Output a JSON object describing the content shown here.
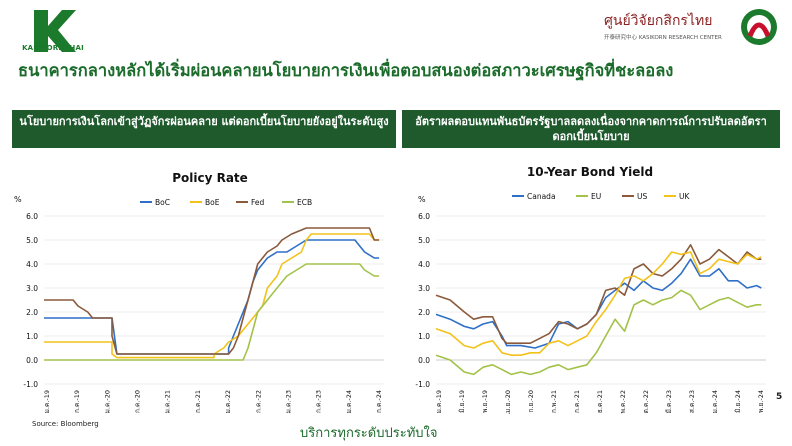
{
  "header": {
    "left_brand": "KASIKORNTHAI",
    "right_brand_title": "ศูนย์วิจัยกสิกรไทย",
    "right_brand_sub": "开泰研究中心 KASIKORN RESEARCH CENTER"
  },
  "title": "ธนาคารกลางหลักได้เริ่มผ่อนคลายนโยบายการเงินเพื่อตอบสนองต่อสภาวะเศรษฐกิจที่ชะลอลง",
  "banners": {
    "left": "นโยบายการเงินโลกเข้าสู่วัฏจักรผ่อนคลาย แต่ดอกเบี้ยนโยบายยังอยู่ในระดับสูง",
    "right": "อัตราผลตอบแทนพันธบัตรรัฐบาลลดลงเนื่องจากคาดการณ์การปรับลดอัตราดอกเบี้ยนโยบาย"
  },
  "footer": {
    "source": "Source: Bloomberg",
    "tagline": "บริการทุกระดับประทับใจ",
    "page": "5"
  },
  "colors": {
    "brand_green": "#1b6b2b",
    "banner_bg": "#1f5a2d",
    "BoC": "#2f6fc7",
    "BoE": "#f2c21b",
    "Fed": "#8a5a3b",
    "ECB": "#a3c24a",
    "Canada": "#2f6fc7",
    "EU": "#a3c24a",
    "US": "#8a5a3b",
    "UK": "#f2c21b"
  },
  "chart_data": [
    {
      "type": "line",
      "title": "Policy Rate",
      "ylabel": "%",
      "ylim": [
        -1.0,
        6.0
      ],
      "yticks": [
        "6.0",
        "5.0",
        "4.0",
        "3.0",
        "2.0",
        "1.0",
        "0.0",
        "-1.0"
      ],
      "x_ticks": [
        "ม.ค.-19",
        "ก.ค.-19",
        "ม.ค.-20",
        "ก.ค.-20",
        "ม.ค.-21",
        "ก.ค.-21",
        "ม.ค.-22",
        "ก.ค.-22",
        "ม.ค.-23",
        "ก.ค.-23",
        "ม.ค.-24",
        "ก.ค.-24"
      ],
      "x_range_months": [
        0,
        70
      ],
      "legend": "top",
      "series": [
        {
          "name": "BoC",
          "points": [
            [
              0,
              1.75
            ],
            [
              14,
              1.75
            ],
            [
              15,
              0.25
            ],
            [
              38,
              0.25
            ],
            [
              38,
              0.5
            ],
            [
              39,
              1.0
            ],
            [
              40,
              1.5
            ],
            [
              42,
              2.5
            ],
            [
              43,
              3.25
            ],
            [
              44,
              3.75
            ],
            [
              46,
              4.25
            ],
            [
              48,
              4.5
            ],
            [
              50,
              4.5
            ],
            [
              54,
              5.0
            ],
            [
              64,
              5.0
            ],
            [
              65,
              4.75
            ],
            [
              66,
              4.5
            ],
            [
              68,
              4.25
            ],
            [
              69,
              4.25
            ]
          ]
        },
        {
          "name": "BoE",
          "points": [
            [
              0,
              0.75
            ],
            [
              14,
              0.75
            ],
            [
              14,
              0.25
            ],
            [
              15,
              0.1
            ],
            [
              35,
              0.1
            ],
            [
              35,
              0.25
            ],
            [
              37,
              0.5
            ],
            [
              38,
              0.75
            ],
            [
              40,
              1.0
            ],
            [
              41,
              1.25
            ],
            [
              43,
              1.75
            ],
            [
              45,
              2.25
            ],
            [
              46,
              3.0
            ],
            [
              48,
              3.5
            ],
            [
              49,
              4.0
            ],
            [
              51,
              4.25
            ],
            [
              53,
              4.5
            ],
            [
              54,
              5.0
            ],
            [
              55,
              5.25
            ],
            [
              67,
              5.25
            ],
            [
              68,
              5.0
            ],
            [
              69,
              5.0
            ]
          ]
        },
        {
          "name": "Fed",
          "points": [
            [
              0,
              2.5
            ],
            [
              6,
              2.5
            ],
            [
              7,
              2.25
            ],
            [
              9,
              2.0
            ],
            [
              10,
              1.75
            ],
            [
              14,
              1.75
            ],
            [
              14,
              1.0
            ],
            [
              15,
              0.25
            ],
            [
              38,
              0.25
            ],
            [
              39,
              0.5
            ],
            [
              40,
              1.0
            ],
            [
              41,
              1.75
            ],
            [
              42,
              2.5
            ],
            [
              43,
              3.25
            ],
            [
              44,
              4.0
            ],
            [
              46,
              4.5
            ],
            [
              48,
              4.75
            ],
            [
              49,
              5.0
            ],
            [
              51,
              5.25
            ],
            [
              54,
              5.5
            ],
            [
              67,
              5.5
            ],
            [
              68,
              5.0
            ],
            [
              69,
              5.0
            ]
          ]
        },
        {
          "name": "ECB",
          "points": [
            [
              0,
              0.0
            ],
            [
              41,
              0.0
            ],
            [
              42,
              0.5
            ],
            [
              43,
              1.25
            ],
            [
              44,
              2.0
            ],
            [
              46,
              2.5
            ],
            [
              48,
              3.0
            ],
            [
              50,
              3.5
            ],
            [
              52,
              3.75
            ],
            [
              54,
              4.0
            ],
            [
              65,
              4.0
            ],
            [
              66,
              3.75
            ],
            [
              68,
              3.5
            ],
            [
              69,
              3.5
            ]
          ]
        }
      ]
    },
    {
      "type": "line",
      "title": "10-Year Bond Yield",
      "ylabel": "%",
      "ylim": [
        -1.0,
        6.0
      ],
      "yticks": [
        "6.0",
        "5.0",
        "4.0",
        "3.0",
        "2.0",
        "1.0",
        "0.0",
        "-1.0"
      ],
      "x_ticks": [
        "ม.ค.-19",
        "มิ.ย.-19",
        "พ.ย.-19",
        "เม.ย.-20",
        "ก.ย.-20",
        "ก.พ.-21",
        "ก.ค.-21",
        "ธ.ค.-21",
        "พ.ค.-22",
        "ต.ค.-22",
        "มี.ค.-23",
        "ส.ค.-23",
        "ม.ค.-24",
        "มิ.ย.-24",
        "พ.ย.-24"
      ],
      "x_range_months": [
        0,
        70
      ],
      "legend": "top",
      "series": [
        {
          "name": "Canada",
          "points": [
            [
              0,
              1.9
            ],
            [
              3,
              1.7
            ],
            [
              6,
              1.4
            ],
            [
              8,
              1.3
            ],
            [
              10,
              1.5
            ],
            [
              12,
              1.6
            ],
            [
              14,
              1.0
            ],
            [
              15,
              0.6
            ],
            [
              18,
              0.6
            ],
            [
              21,
              0.5
            ],
            [
              24,
              0.7
            ],
            [
              26,
              1.5
            ],
            [
              28,
              1.6
            ],
            [
              30,
              1.3
            ],
            [
              32,
              1.5
            ],
            [
              34,
              1.9
            ],
            [
              36,
              2.6
            ],
            [
              38,
              2.9
            ],
            [
              40,
              3.2
            ],
            [
              42,
              2.9
            ],
            [
              44,
              3.3
            ],
            [
              46,
              3.0
            ],
            [
              48,
              2.9
            ],
            [
              50,
              3.2
            ],
            [
              52,
              3.6
            ],
            [
              54,
              4.2
            ],
            [
              56,
              3.5
            ],
            [
              58,
              3.5
            ],
            [
              60,
              3.8
            ],
            [
              62,
              3.3
            ],
            [
              64,
              3.3
            ],
            [
              66,
              3.0
            ],
            [
              68,
              3.1
            ],
            [
              69,
              3.0
            ]
          ]
        },
        {
          "name": "EU",
          "points": [
            [
              0,
              0.2
            ],
            [
              3,
              0.0
            ],
            [
              6,
              -0.5
            ],
            [
              8,
              -0.6
            ],
            [
              10,
              -0.3
            ],
            [
              12,
              -0.2
            ],
            [
              14,
              -0.4
            ],
            [
              16,
              -0.6
            ],
            [
              18,
              -0.5
            ],
            [
              20,
              -0.6
            ],
            [
              22,
              -0.5
            ],
            [
              24,
              -0.3
            ],
            [
              26,
              -0.2
            ],
            [
              28,
              -0.4
            ],
            [
              30,
              -0.3
            ],
            [
              32,
              -0.2
            ],
            [
              34,
              0.3
            ],
            [
              36,
              1.0
            ],
            [
              38,
              1.7
            ],
            [
              40,
              1.2
            ],
            [
              42,
              2.3
            ],
            [
              44,
              2.5
            ],
            [
              46,
              2.3
            ],
            [
              48,
              2.5
            ],
            [
              50,
              2.6
            ],
            [
              52,
              2.9
            ],
            [
              54,
              2.7
            ],
            [
              56,
              2.1
            ],
            [
              58,
              2.3
            ],
            [
              60,
              2.5
            ],
            [
              62,
              2.6
            ],
            [
              64,
              2.4
            ],
            [
              66,
              2.2
            ],
            [
              68,
              2.3
            ],
            [
              69,
              2.3
            ]
          ]
        },
        {
          "name": "US",
          "points": [
            [
              0,
              2.7
            ],
            [
              3,
              2.5
            ],
            [
              6,
              2.0
            ],
            [
              8,
              1.7
            ],
            [
              10,
              1.8
            ],
            [
              12,
              1.8
            ],
            [
              14,
              0.9
            ],
            [
              15,
              0.7
            ],
            [
              18,
              0.7
            ],
            [
              20,
              0.7
            ],
            [
              22,
              0.9
            ],
            [
              24,
              1.1
            ],
            [
              26,
              1.6
            ],
            [
              28,
              1.5
            ],
            [
              30,
              1.3
            ],
            [
              32,
              1.5
            ],
            [
              34,
              1.9
            ],
            [
              36,
              2.9
            ],
            [
              38,
              3.0
            ],
            [
              40,
              2.7
            ],
            [
              42,
              3.8
            ],
            [
              44,
              4.0
            ],
            [
              46,
              3.6
            ],
            [
              48,
              3.5
            ],
            [
              50,
              3.8
            ],
            [
              52,
              4.2
            ],
            [
              54,
              4.8
            ],
            [
              56,
              4.0
            ],
            [
              58,
              4.2
            ],
            [
              60,
              4.6
            ],
            [
              62,
              4.3
            ],
            [
              64,
              4.0
            ],
            [
              66,
              4.5
            ],
            [
              68,
              4.2
            ],
            [
              69,
              4.2
            ]
          ]
        },
        {
          "name": "UK",
          "points": [
            [
              0,
              1.3
            ],
            [
              3,
              1.1
            ],
            [
              6,
              0.6
            ],
            [
              8,
              0.5
            ],
            [
              10,
              0.7
            ],
            [
              12,
              0.8
            ],
            [
              14,
              0.3
            ],
            [
              16,
              0.2
            ],
            [
              18,
              0.2
            ],
            [
              20,
              0.3
            ],
            [
              22,
              0.3
            ],
            [
              24,
              0.7
            ],
            [
              26,
              0.8
            ],
            [
              28,
              0.6
            ],
            [
              30,
              0.8
            ],
            [
              32,
              1.0
            ],
            [
              34,
              1.6
            ],
            [
              36,
              2.1
            ],
            [
              38,
              2.7
            ],
            [
              40,
              3.4
            ],
            [
              42,
              3.5
            ],
            [
              44,
              3.3
            ],
            [
              46,
              3.6
            ],
            [
              48,
              4.0
            ],
            [
              50,
              4.5
            ],
            [
              52,
              4.4
            ],
            [
              54,
              4.5
            ],
            [
              56,
              3.6
            ],
            [
              58,
              3.8
            ],
            [
              60,
              4.2
            ],
            [
              62,
              4.1
            ],
            [
              64,
              4.0
            ],
            [
              66,
              4.4
            ],
            [
              68,
              4.2
            ],
            [
              69,
              4.3
            ]
          ]
        }
      ]
    }
  ]
}
